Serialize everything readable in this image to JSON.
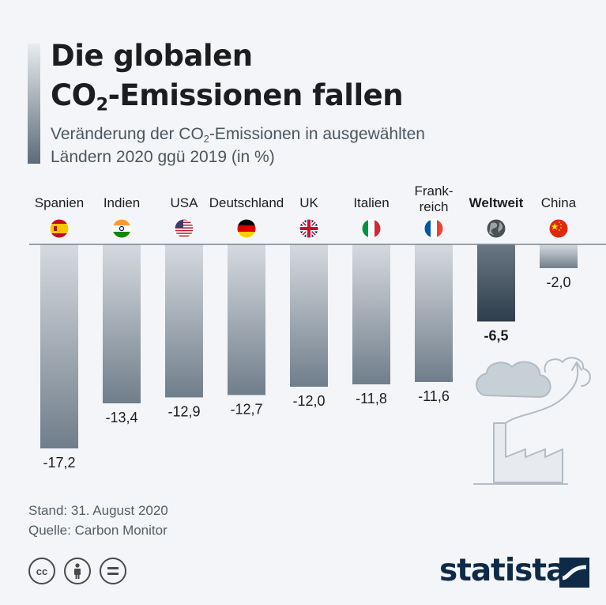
{
  "header": {
    "title_line1": "Die globalen",
    "title_line2_pre": "CO",
    "title_line2_sub": "2",
    "title_line2_post": "-Emissionen fallen",
    "subtitle_pre": "Veränderung der CO",
    "subtitle_sub": "2",
    "subtitle_post": "-Emissionen in ausgewählten",
    "subtitle_line2": "Ländern 2020 ggü 2019 (in %)"
  },
  "chart_data": {
    "type": "bar",
    "categories": [
      "Spanien",
      "Indien",
      "USA",
      "Deutschland",
      "UK",
      "Italien",
      "Frank-reich",
      "Weltweit",
      "China"
    ],
    "values": [
      -17.2,
      -13.4,
      -12.9,
      -12.7,
      -12.0,
      -11.8,
      -11.6,
      -6.5,
      -2.0
    ],
    "value_labels": [
      "-17,2",
      "-13,4",
      "-12,9",
      "-12,7",
      "-12,0",
      "-11,8",
      "-11,6",
      "-6,5",
      "-2,0"
    ],
    "highlight": "Weltweit",
    "flags": [
      "flag-spain-icon",
      "flag-india-icon",
      "flag-usa-icon",
      "flag-germany-icon",
      "flag-uk-icon",
      "flag-italy-icon",
      "flag-france-icon",
      "globe-icon",
      "flag-china-icon"
    ],
    "ylim": [
      -17.2,
      0
    ],
    "colors": {
      "bar_top": "#d6dadf",
      "bar_bottom": "#707e8b",
      "highlight_top": "#6a7784",
      "highlight_bottom": "#2f3e4c",
      "baseline": "#7a858f"
    }
  },
  "footer": {
    "date": "Stand: 31. August 2020",
    "source": "Quelle: Carbon Monitor",
    "license_icons": [
      "cc-icon",
      "attribution-icon",
      "no-derivatives-icon"
    ]
  },
  "brand": {
    "name": "statista",
    "color": "#0e2a47"
  }
}
